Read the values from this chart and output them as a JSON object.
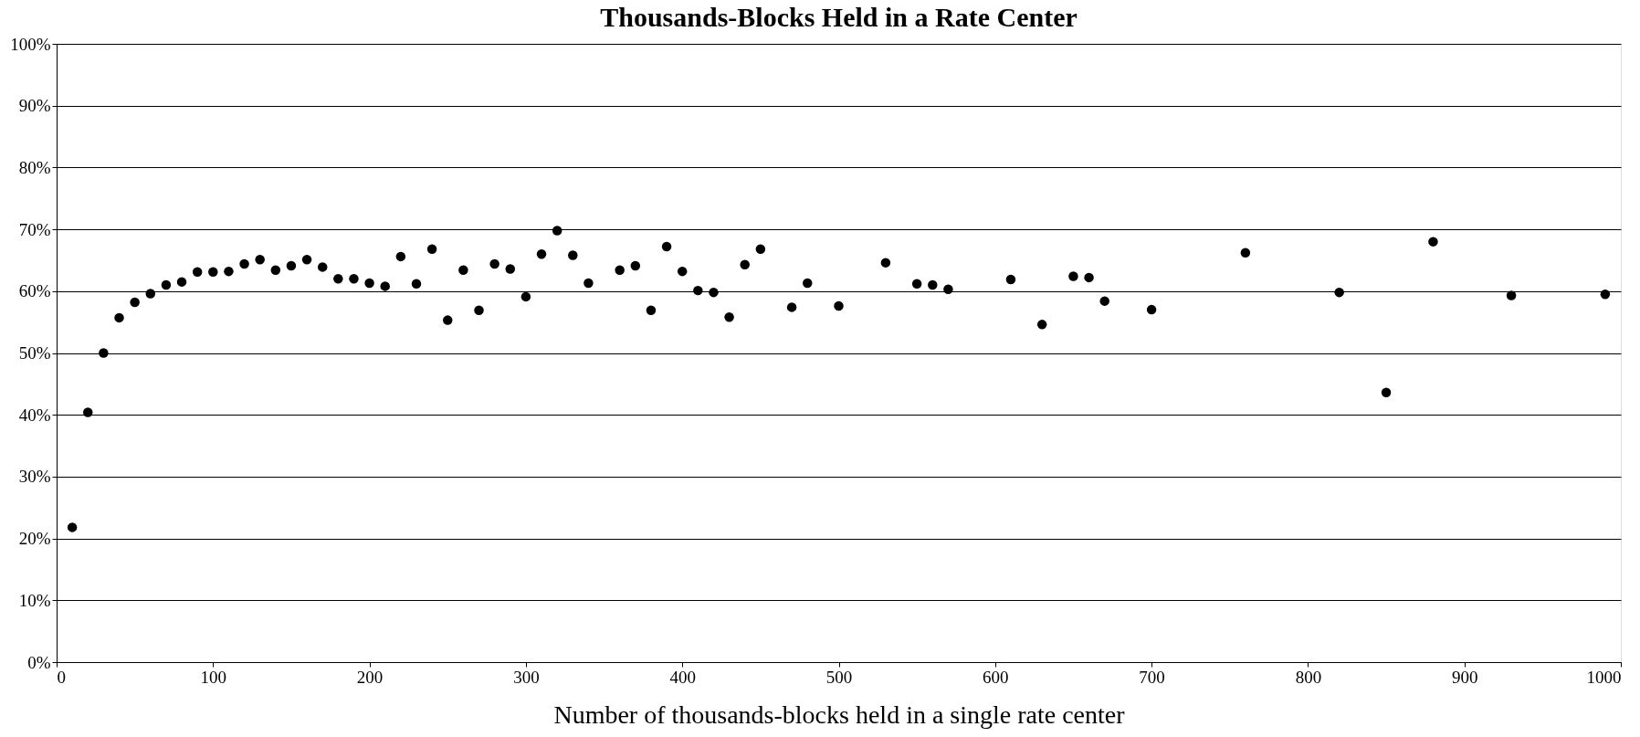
{
  "chart_data": {
    "type": "scatter",
    "title": "Thousands-Blocks Held in a Rate Center",
    "xlabel": "Number of thousands-blocks held in a single rate center",
    "x": [
      10,
      20,
      30,
      40,
      50,
      60,
      70,
      80,
      90,
      100,
      110,
      120,
      130,
      140,
      150,
      160,
      170,
      180,
      190,
      200,
      210,
      220,
      230,
      240,
      250,
      260,
      270,
      280,
      290,
      300,
      310,
      320,
      330,
      340,
      360,
      370,
      380,
      390,
      400,
      410,
      420,
      430,
      440,
      450,
      470,
      480,
      500,
      530,
      550,
      560,
      570,
      610,
      630,
      650,
      660,
      670,
      700,
      760,
      820,
      850,
      880,
      930,
      990
    ],
    "series": [
      {
        "color": "#000000",
        "values": [
          21.8,
          40.4,
          50.0,
          55.7,
          58.2,
          59.6,
          61.0,
          61.5,
          63.1,
          63.1,
          63.2,
          64.4,
          65.1,
          63.4,
          64.1,
          65.1,
          63.9,
          62.0,
          62.0,
          61.3,
          60.8,
          65.6,
          61.2,
          66.8,
          55.3,
          63.4,
          56.9,
          64.4,
          63.6,
          59.1,
          66.0,
          69.8,
          65.8,
          61.3,
          63.4,
          64.1,
          56.9,
          67.2,
          63.2,
          60.1,
          59.8,
          55.8,
          64.3,
          66.8,
          57.4,
          61.3,
          57.6,
          64.6,
          61.2,
          61.0,
          60.3,
          61.9,
          54.6,
          62.4,
          62.2,
          58.4,
          57.0,
          66.2,
          59.8,
          43.6,
          68.0,
          59.3,
          59.5
        ]
      }
    ],
    "xlim": [
      0,
      1000
    ],
    "xticks": [
      0,
      100,
      200,
      300,
      400,
      500,
      600,
      700,
      800,
      900,
      1000
    ],
    "ylim": [
      0,
      100
    ],
    "yticks": [
      {
        "value": 0,
        "label": "0%"
      },
      {
        "value": 10,
        "label": "10%"
      },
      {
        "value": 20,
        "label": "20%"
      },
      {
        "value": 30,
        "label": "30%"
      },
      {
        "value": 40,
        "label": "40%"
      },
      {
        "value": 50,
        "label": "50%"
      },
      {
        "value": 60,
        "label": "60%"
      },
      {
        "value": 70,
        "label": "70%"
      },
      {
        "value": 80,
        "label": "80%"
      },
      {
        "value": 90,
        "label": "90%"
      },
      {
        "value": 100,
        "label": "100%"
      }
    ],
    "grid": "y",
    "marker": "circle"
  }
}
